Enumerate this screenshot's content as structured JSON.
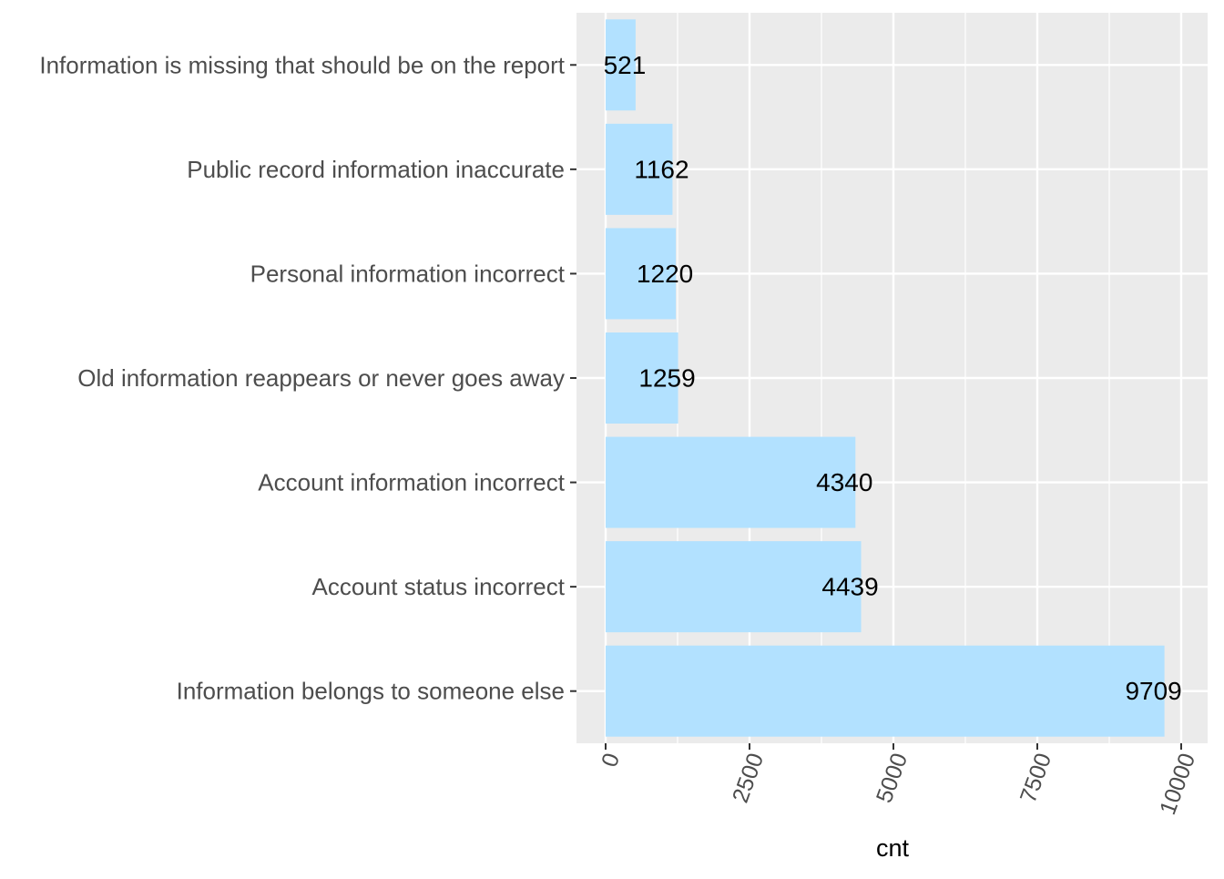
{
  "chart_data": {
    "type": "bar",
    "orientation": "horizontal",
    "categories": [
      "Information belongs to someone else",
      "Account status incorrect",
      "Account information incorrect",
      "Old information reappears or never goes away",
      "Personal information incorrect",
      "Public record information inaccurate",
      "Information is missing that should be on the report"
    ],
    "values": [
      9709,
      4439,
      4340,
      1259,
      1220,
      1162,
      521
    ],
    "data_labels": [
      "9709",
      "4439",
      "4340",
      "1259",
      "1220",
      "1162",
      "521"
    ],
    "xlabel": "cnt",
    "ylabel": "",
    "xlim": [
      -500,
      10000
    ],
    "x_ticks": [
      0,
      2500,
      5000,
      7500,
      10000
    ],
    "x_tick_labels": [
      "0",
      "2500",
      "5000",
      "7500",
      "10000"
    ],
    "grid": true,
    "legend": "none",
    "colors": {
      "bar": "#b2e1ff",
      "panel": "#ebebeb",
      "grid": "#ffffff",
      "category_text": "#4d4d4d",
      "value_text": "#000000"
    }
  }
}
